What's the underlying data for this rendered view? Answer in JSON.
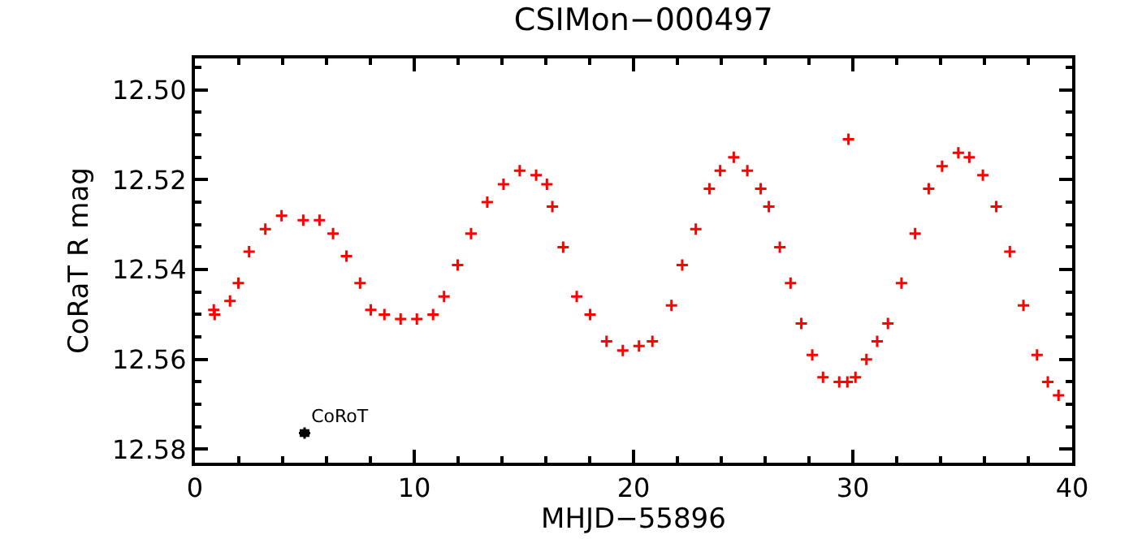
{
  "chart_data": {
    "type": "scatter",
    "title": "CSIMon−000497",
    "xlabel": "MHJD−55896",
    "ylabel": "CoRaT R mag",
    "xlim": [
      0,
      40
    ],
    "xticks": [
      0,
      10,
      20,
      30,
      40
    ],
    "ylim": [
      12.583,
      12.493
    ],
    "yticks": [
      {
        "value": 12.5,
        "label": "12.50"
      },
      {
        "value": 12.52,
        "label": "12.52"
      },
      {
        "value": 12.54,
        "label": "12.54"
      },
      {
        "value": 12.56,
        "label": "12.56"
      },
      {
        "value": 12.58,
        "label": "12.58"
      }
    ],
    "marker": "cross",
    "series": [
      {
        "color": "#ff0000",
        "x": [
          0.86,
          0.9,
          1.6,
          1.98,
          2.47,
          3.21,
          3.95,
          4.94,
          5.68,
          6.3,
          6.91,
          7.53,
          8.02,
          8.64,
          9.38,
          10.12,
          10.86,
          11.36,
          11.98,
          12.59,
          13.33,
          14.07,
          14.81,
          15.56,
          16.05,
          16.3,
          16.79,
          17.41,
          18.02,
          18.77,
          19.51,
          20.25,
          20.86,
          21.73,
          22.22,
          22.84,
          23.46,
          23.95,
          24.57,
          25.19,
          25.8,
          26.17,
          26.67,
          27.16,
          27.65,
          28.15,
          28.64,
          29.38,
          29.75,
          29.8,
          30.12,
          30.62,
          31.11,
          31.6,
          32.22,
          32.84,
          33.46,
          34.07,
          34.81,
          35.31,
          35.93,
          36.54,
          37.16,
          37.78,
          38.4,
          38.89,
          39.38
        ],
        "values": [
          12.549,
          12.55,
          12.547,
          12.543,
          12.536,
          12.531,
          12.528,
          12.529,
          12.529,
          12.532,
          12.537,
          12.543,
          12.549,
          12.55,
          12.551,
          12.551,
          12.55,
          12.546,
          12.539,
          12.532,
          12.525,
          12.521,
          12.518,
          12.519,
          12.521,
          12.526,
          12.535,
          12.546,
          12.55,
          12.556,
          12.558,
          12.557,
          12.556,
          12.548,
          12.539,
          12.531,
          12.522,
          12.518,
          12.515,
          12.518,
          12.522,
          12.526,
          12.535,
          12.543,
          12.552,
          12.559,
          12.564,
          12.565,
          12.565,
          12.511,
          12.564,
          12.56,
          12.556,
          12.552,
          12.543,
          12.532,
          12.522,
          12.517,
          12.514,
          12.515,
          12.519,
          12.526,
          12.536,
          12.548,
          12.559,
          12.565,
          12.568
        ]
      },
      {
        "name": "CoRoT",
        "color": "#000000",
        "x": [
          5.0
        ],
        "values": [
          12.5764
        ],
        "errors": [
          0.0005
        ]
      }
    ]
  }
}
